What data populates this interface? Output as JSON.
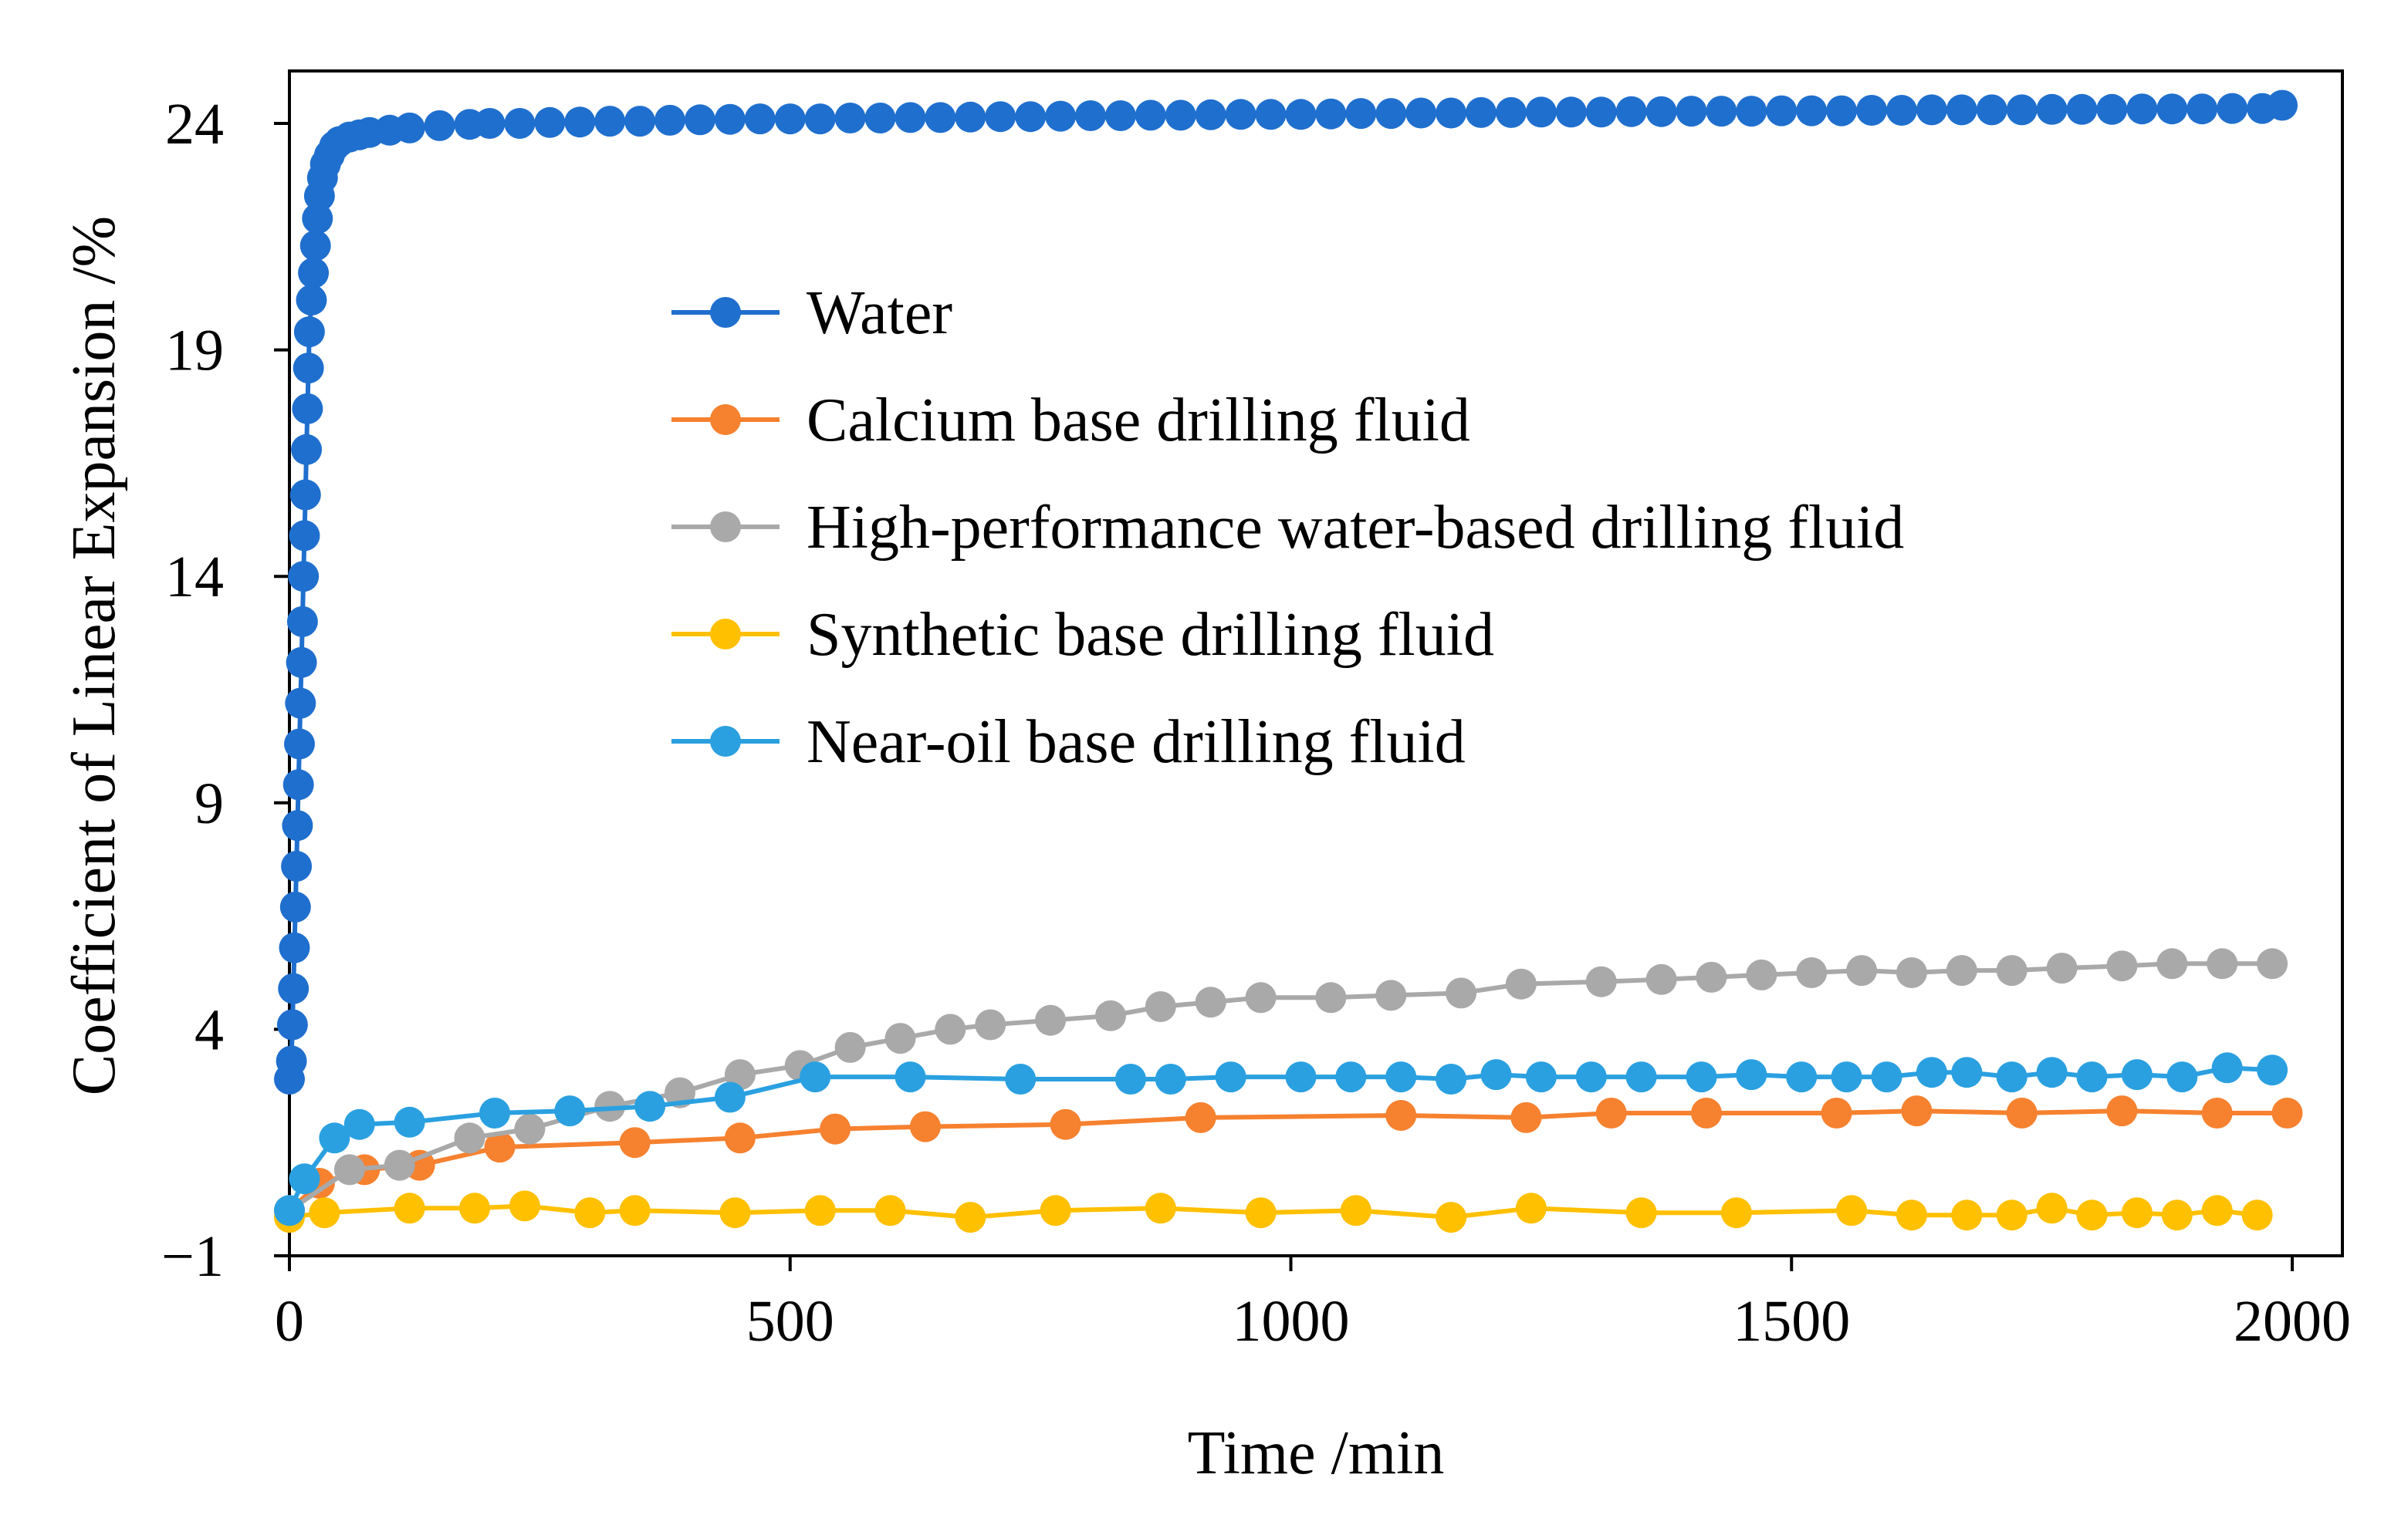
{
  "chart_data": {
    "type": "line",
    "title": "",
    "xlabel": "Time /min",
    "ylabel": "Coefficient of Linear Expansion /%",
    "xlim": [
      0,
      2050
    ],
    "ylim": [
      -1,
      26
    ],
    "xticks": [
      0,
      500,
      1000,
      1500,
      2000
    ],
    "xtick_labels": [
      "0",
      "500",
      "1000",
      "1500",
      "2000"
    ],
    "yticks": [
      -1,
      4,
      9,
      14,
      19,
      24
    ],
    "ytick_labels": [
      "−1",
      "4",
      "9",
      "14",
      "19",
      "24"
    ],
    "grid": false,
    "legend_position": "upper-center",
    "series": [
      {
        "name": "Water",
        "color": "#1F6FCE",
        "x": [
          0,
          2,
          3,
          4,
          5,
          6,
          7,
          8,
          9,
          10,
          11,
          12,
          13,
          14,
          15,
          16,
          17,
          18,
          19,
          20,
          22,
          24,
          26,
          28,
          30,
          33,
          36,
          40,
          45,
          50,
          60,
          70,
          80,
          100,
          120,
          150,
          180,
          200,
          230,
          260,
          290,
          320,
          350,
          380,
          410,
          440,
          470,
          500,
          530,
          560,
          590,
          620,
          650,
          680,
          710,
          740,
          770,
          800,
          830,
          860,
          890,
          920,
          950,
          980,
          1010,
          1040,
          1070,
          1100,
          1130,
          1160,
          1190,
          1220,
          1250,
          1280,
          1310,
          1340,
          1370,
          1400,
          1430,
          1460,
          1490,
          1520,
          1550,
          1580,
          1610,
          1640,
          1670,
          1700,
          1730,
          1760,
          1790,
          1820,
          1850,
          1880,
          1910,
          1940,
          1970,
          1990
        ],
        "y": [
          2.9,
          3.3,
          4.1,
          4.9,
          5.8,
          6.7,
          7.6,
          8.5,
          9.4,
          10.3,
          11.2,
          12.1,
          13.0,
          14.0,
          14.9,
          15.8,
          16.8,
          17.7,
          18.6,
          19.4,
          20.1,
          20.7,
          21.3,
          21.9,
          22.4,
          22.8,
          23.1,
          23.3,
          23.5,
          23.6,
          23.7,
          23.75,
          23.8,
          23.85,
          23.9,
          23.95,
          23.98,
          24.0,
          24.0,
          24.02,
          24.03,
          24.05,
          24.05,
          24.07,
          24.08,
          24.09,
          24.1,
          24.1,
          24.1,
          24.12,
          24.12,
          24.13,
          24.13,
          24.14,
          24.15,
          24.15,
          24.16,
          24.17,
          24.17,
          24.18,
          24.18,
          24.19,
          24.2,
          24.2,
          24.2,
          24.21,
          24.22,
          24.22,
          24.23,
          24.23,
          24.24,
          24.24,
          24.25,
          24.25,
          24.25,
          24.26,
          24.26,
          24.27,
          24.27,
          24.27,
          24.28,
          24.28,
          24.28,
          24.29,
          24.29,
          24.3,
          24.3,
          24.3,
          24.3,
          24.31,
          24.31,
          24.31,
          24.32,
          24.32,
          24.32,
          24.33,
          24.33,
          24.4
        ]
      },
      {
        "name": "Calcium base drilling fluid",
        "color": "#F6812F",
        "x": [
          0,
          30,
          75,
          130,
          210,
          345,
          450,
          545,
          635,
          775,
          910,
          1110,
          1235,
          1320,
          1415,
          1545,
          1625,
          1730,
          1830,
          1925,
          1995
        ],
        "y": [
          0.0,
          0.6,
          0.9,
          1.0,
          1.4,
          1.5,
          1.6,
          1.8,
          1.85,
          1.9,
          2.05,
          2.1,
          2.05,
          2.15,
          2.15,
          2.15,
          2.2,
          2.15,
          2.2,
          2.15,
          2.15
        ]
      },
      {
        "name": "High-performance water-based drilling fluid",
        "color": "#A9A9A9",
        "x": [
          0,
          60,
          110,
          180,
          240,
          320,
          390,
          450,
          510,
          560,
          610,
          660,
          700,
          760,
          820,
          870,
          920,
          970,
          1040,
          1100,
          1170,
          1230,
          1310,
          1370,
          1420,
          1470,
          1520,
          1570,
          1620,
          1670,
          1720,
          1770,
          1830,
          1880,
          1930,
          1980
        ],
        "y": [
          0.0,
          0.9,
          1.0,
          1.6,
          1.8,
          2.3,
          2.6,
          3.0,
          3.2,
          3.6,
          3.8,
          4.0,
          4.1,
          4.2,
          4.3,
          4.5,
          4.6,
          4.7,
          4.7,
          4.75,
          4.8,
          5.0,
          5.05,
          5.1,
          5.15,
          5.2,
          5.25,
          5.3,
          5.25,
          5.3,
          5.3,
          5.35,
          5.4,
          5.45,
          5.45,
          5.45
        ]
      },
      {
        "name": "Synthetic base drilling fluid",
        "color": "#FFC000",
        "x": [
          0,
          35,
          120,
          185,
          235,
          300,
          345,
          445,
          530,
          600,
          680,
          765,
          870,
          970,
          1065,
          1160,
          1240,
          1350,
          1445,
          1560,
          1620,
          1675,
          1720,
          1760,
          1800,
          1845,
          1885,
          1925,
          1965
        ],
        "y": [
          -0.15,
          -0.05,
          0.05,
          0.05,
          0.1,
          -0.05,
          0.0,
          -0.05,
          0.0,
          0.0,
          -0.15,
          0.0,
          0.05,
          -0.05,
          0.0,
          -0.15,
          0.05,
          -0.05,
          -0.05,
          0.0,
          -0.1,
          -0.1,
          -0.1,
          0.05,
          -0.1,
          -0.05,
          -0.1,
          0.0,
          -0.1
        ]
      },
      {
        "name": "Near-oil base drilling fluid",
        "color": "#2AA0E0",
        "x": [
          0,
          15,
          45,
          70,
          120,
          205,
          280,
          360,
          440,
          525,
          620,
          730,
          840,
          880,
          940,
          1010,
          1060,
          1110,
          1160,
          1205,
          1250,
          1300,
          1350,
          1410,
          1460,
          1510,
          1555,
          1595,
          1640,
          1675,
          1720,
          1760,
          1800,
          1845,
          1890,
          1935,
          1980
        ],
        "y": [
          0.0,
          0.7,
          1.6,
          1.9,
          1.95,
          2.15,
          2.2,
          2.3,
          2.5,
          2.95,
          2.95,
          2.9,
          2.9,
          2.9,
          2.95,
          2.95,
          2.95,
          2.95,
          2.9,
          3.0,
          2.95,
          2.95,
          2.95,
          2.95,
          3.0,
          2.95,
          2.95,
          2.95,
          3.05,
          3.05,
          2.95,
          3.05,
          2.95,
          3.0,
          2.95,
          3.15,
          3.1
        ]
      }
    ]
  }
}
